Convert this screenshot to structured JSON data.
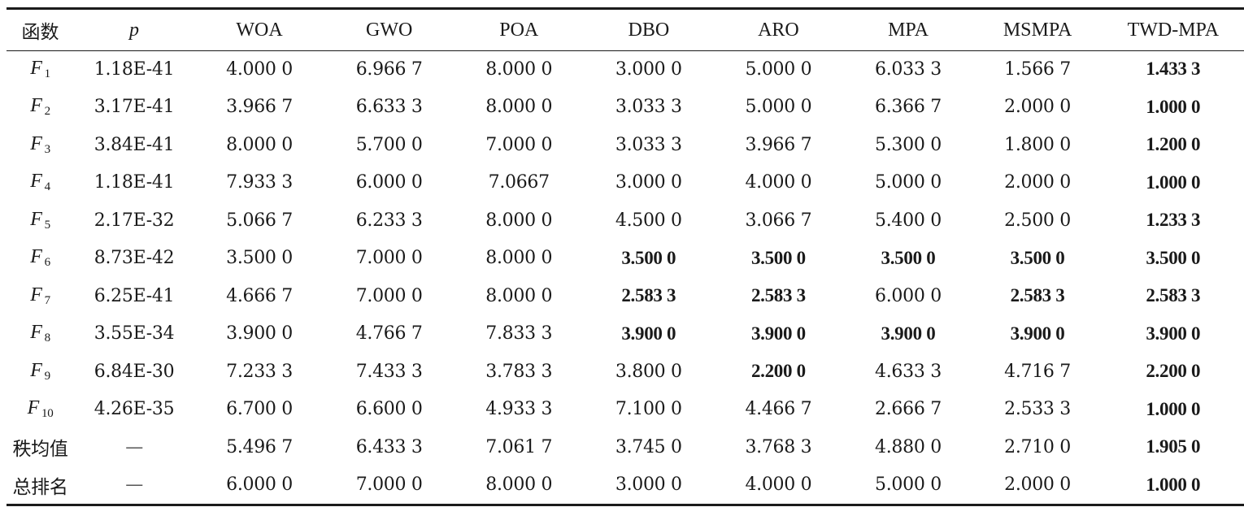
{
  "table": {
    "headers": [
      "函数",
      "p",
      "WOA",
      "GWO",
      "POA",
      "DBO",
      "ARO",
      "MPA",
      "MSMPA",
      "TWD-MPA"
    ],
    "rows": [
      {
        "fn": "F",
        "sub": "1",
        "p": "1.18E-41",
        "vals": [
          "4.000 0",
          "6.966 7",
          "8.000 0",
          "3.000 0",
          "5.000 0",
          "6.033 3",
          "1.566 7",
          "1.433 3"
        ],
        "bold": [
          false,
          false,
          false,
          false,
          false,
          false,
          false,
          true
        ]
      },
      {
        "fn": "F",
        "sub": "2",
        "p": "3.17E-41",
        "vals": [
          "3.966 7",
          "6.633 3",
          "8.000 0",
          "3.033 3",
          "5.000 0",
          "6.366 7",
          "2.000 0",
          "1.000 0"
        ],
        "bold": [
          false,
          false,
          false,
          false,
          false,
          false,
          false,
          true
        ]
      },
      {
        "fn": "F",
        "sub": "3",
        "p": "3.84E-41",
        "vals": [
          "8.000 0",
          "5.700 0",
          "7.000 0",
          "3.033 3",
          "3.966 7",
          "5.300 0",
          "1.800 0",
          "1.200 0"
        ],
        "bold": [
          false,
          false,
          false,
          false,
          false,
          false,
          false,
          true
        ]
      },
      {
        "fn": "F",
        "sub": "4",
        "p": "1.18E-41",
        "vals": [
          "7.933 3",
          "6.000 0",
          "7.0667",
          "3.000 0",
          "4.000 0",
          "5.000 0",
          "2.000 0",
          "1.000 0"
        ],
        "bold": [
          false,
          false,
          false,
          false,
          false,
          false,
          false,
          true
        ]
      },
      {
        "fn": "F",
        "sub": "5",
        "p": "2.17E-32",
        "vals": [
          "5.066 7",
          "6.233 3",
          "8.000 0",
          "4.500 0",
          "3.066 7",
          "5.400 0",
          "2.500 0",
          "1.233 3"
        ],
        "bold": [
          false,
          false,
          false,
          false,
          false,
          false,
          false,
          true
        ]
      },
      {
        "fn": "F",
        "sub": "6",
        "p": "8.73E-42",
        "vals": [
          "3.500 0",
          "7.000 0",
          "8.000 0",
          "3.500 0",
          "3.500 0",
          "3.500 0",
          "3.500 0",
          "3.500 0"
        ],
        "bold": [
          false,
          false,
          false,
          true,
          true,
          true,
          true,
          true
        ]
      },
      {
        "fn": "F",
        "sub": "7",
        "p": "6.25E-41",
        "vals": [
          "4.666 7",
          "7.000 0",
          "8.000 0",
          "2.583 3",
          "2.583 3",
          "6.000 0",
          "2.583 3",
          "2.583 3"
        ],
        "bold": [
          false,
          false,
          false,
          true,
          true,
          false,
          true,
          true
        ]
      },
      {
        "fn": "F",
        "sub": "8",
        "p": "3.55E-34",
        "vals": [
          "3.900 0",
          "4.766 7",
          "7.833 3",
          "3.900 0",
          "3.900 0",
          "3.900 0",
          "3.900 0",
          "3.900 0"
        ],
        "bold": [
          false,
          false,
          false,
          true,
          true,
          true,
          true,
          true
        ]
      },
      {
        "fn": "F",
        "sub": "9",
        "p": "6.84E-30",
        "vals": [
          "7.233 3",
          "7.433 3",
          "3.783 3",
          "3.800 0",
          "2.200 0",
          "4.633 3",
          "4.716 7",
          "2.200 0"
        ],
        "bold": [
          false,
          false,
          false,
          false,
          true,
          false,
          false,
          true
        ]
      },
      {
        "fn": "F",
        "sub": "10",
        "p": "4.26E-35",
        "vals": [
          "6.700 0",
          "6.600 0",
          "4.933 3",
          "7.100 0",
          "4.466 7",
          "2.666 7",
          "2.533 3",
          "1.000 0"
        ],
        "bold": [
          false,
          false,
          false,
          false,
          false,
          false,
          false,
          true
        ]
      },
      {
        "fn": "秩均值",
        "sub": "",
        "p": "—",
        "vals": [
          "5.496 7",
          "6.433 3",
          "7.061 7",
          "3.745 0",
          "3.768 3",
          "4.880 0",
          "2.710 0",
          "1.905 0"
        ],
        "bold": [
          false,
          false,
          false,
          false,
          false,
          false,
          false,
          true
        ]
      },
      {
        "fn": "总排名",
        "sub": "",
        "p": "—",
        "vals": [
          "6.000 0",
          "7.000 0",
          "8.000 0",
          "3.000 0",
          "4.000 0",
          "5.000 0",
          "2.000 0",
          "1.000 0"
        ],
        "bold": [
          false,
          false,
          false,
          false,
          false,
          false,
          false,
          true
        ]
      }
    ]
  }
}
